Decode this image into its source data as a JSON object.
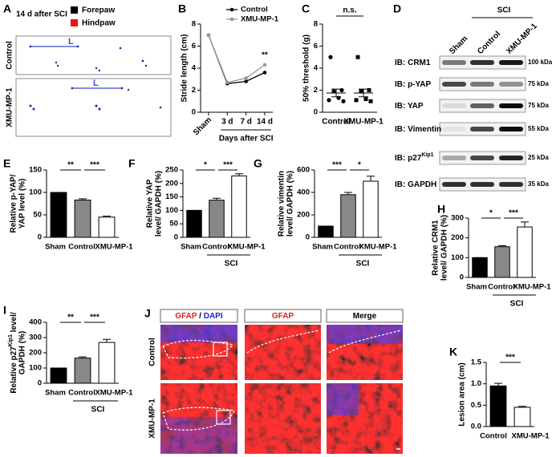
{
  "panel_a": {
    "label": "A",
    "title": "14 d after SCI",
    "legend": [
      {
        "name": "Forepaw",
        "color": "#000000"
      },
      {
        "name": "Hindpaw",
        "color": "#ee1111"
      }
    ],
    "rows": [
      "Control",
      "XMU-MP-1"
    ],
    "markers": [
      "L",
      "L"
    ]
  },
  "panel_d": {
    "label": "D",
    "lanes": [
      "Sham",
      "Control",
      "XMU-MP-1"
    ],
    "group_label": "SCI",
    "rows": [
      {
        "label": "IB: CRM1",
        "size": "100 kDa"
      },
      {
        "label": "IB: p-YAP",
        "size": "75 kDa"
      },
      {
        "label": "IB: YAP",
        "size": "75 kDa"
      },
      {
        "label": "IB: Vimentin",
        "size": "55 kDa"
      },
      {
        "label": "IB: p27",
        "sup": "Kip1",
        "size": "25 kDa"
      },
      {
        "label": "IB: GAPDH",
        "size": "35 kDa"
      }
    ]
  },
  "panel_j": {
    "label": "J",
    "headers": [
      [
        {
          "text": "GFAP",
          "color": "#e02020"
        },
        {
          "text": "/",
          "color": "#000000"
        },
        {
          "text": "DAPI",
          "color": "#2020d0"
        }
      ],
      [
        {
          "text": "GFAP",
          "color": "#e02020"
        }
      ],
      [
        {
          "text": "Merge",
          "color": "#000000"
        }
      ]
    ],
    "rows": [
      "Control",
      "XMU-MP-1"
    ]
  },
  "chart_data": [
    {
      "type": "line",
      "panel": "B",
      "ylabel": "Stride length (cm)",
      "xlabel": "Days after SCI",
      "categories": [
        "Sham",
        "3 d",
        "7 d",
        "14 d"
      ],
      "series": [
        {
          "name": "Control",
          "color": "#000000",
          "values": [
            7.0,
            2.6,
            2.8,
            3.6
          ]
        },
        {
          "name": "XMU-MP-1",
          "color": "#999999",
          "values": [
            7.0,
            2.7,
            3.1,
            4.3
          ]
        }
      ],
      "ylim": [
        0,
        8
      ],
      "yticks": [
        0,
        2,
        4,
        6,
        8
      ],
      "annotations": [
        "**"
      ]
    },
    {
      "type": "strip",
      "panel": "C",
      "ylabel": "50% threshold (g)",
      "categories": [
        "Control",
        "XMU-MP-1"
      ],
      "points": [
        [
          5.0,
          2.0,
          1.9,
          1.3,
          1.1,
          1.0
        ],
        [
          5.0,
          2.0,
          1.9,
          1.2,
          1.1,
          1.0
        ]
      ],
      "means": [
        1.75,
        1.75
      ],
      "errors": [
        0.35,
        0.35
      ],
      "markers": [
        "circle",
        "square"
      ],
      "ylim": [
        0,
        8
      ],
      "yticks": [
        0,
        2,
        4,
        6,
        8
      ],
      "annotations": [
        "n.s."
      ]
    },
    {
      "type": "bar",
      "panel": "E",
      "ylabel": [
        "Relative p-YAP/",
        "YAP level (%)"
      ],
      "categories": [
        "Sham",
        "Control",
        "XMU-MP-1"
      ],
      "values": [
        100,
        83,
        45
      ],
      "errors": [
        0,
        3,
        2
      ],
      "colors": [
        "#000000",
        "#888888",
        "#ffffff"
      ],
      "ylim": [
        0,
        150
      ],
      "yticks": [
        0,
        50,
        100,
        150
      ],
      "annotations": [
        "**",
        "***"
      ]
    },
    {
      "type": "bar",
      "panel": "F",
      "ylabel": [
        "Relative YAP",
        "level/ GAPDH (%)"
      ],
      "categories": [
        "Sham",
        "Control",
        "XMU-MP-1"
      ],
      "values": [
        100,
        138,
        228
      ],
      "errors": [
        0,
        7,
        8
      ],
      "colors": [
        "#000000",
        "#888888",
        "#ffffff"
      ],
      "ylim": [
        0,
        250
      ],
      "yticks": [
        0,
        50,
        100,
        150,
        200,
        250
      ],
      "annotations": [
        "*",
        "***"
      ],
      "group_label": "SCI"
    },
    {
      "type": "bar",
      "panel": "G",
      "ylabel": [
        "Relative vimentin",
        "level/ GAPDH (%)"
      ],
      "categories": [
        "Sham",
        "Control",
        "XMU-MP-1"
      ],
      "values": [
        100,
        380,
        500
      ],
      "errors": [
        0,
        20,
        45
      ],
      "colors": [
        "#000000",
        "#888888",
        "#ffffff"
      ],
      "ylim": [
        0,
        600
      ],
      "yticks": [
        0,
        200,
        400,
        600
      ],
      "annotations": [
        "***",
        "*"
      ],
      "group_label": "SCI"
    },
    {
      "type": "bar",
      "panel": "H",
      "ylabel": [
        "Relative CRM1",
        "level/ GAPDH (%)"
      ],
      "categories": [
        "Sham",
        "Control",
        "XMU-MP-1"
      ],
      "values": [
        100,
        155,
        255
      ],
      "errors": [
        0,
        5,
        25
      ],
      "colors": [
        "#000000",
        "#888888",
        "#ffffff"
      ],
      "ylim": [
        0,
        300
      ],
      "yticks": [
        0,
        100,
        200,
        300
      ],
      "annotations": [
        "*",
        "***"
      ],
      "group_label": "SCI"
    },
    {
      "type": "bar",
      "panel": "I",
      "ylabel": [
        {
          "text": "Relative p27",
          "sup": "Kip1",
          "rest": " level/"
        },
        "GAPDH (%)"
      ],
      "categories": [
        "Sham",
        "Control",
        "XMU-MP-1"
      ],
      "values": [
        100,
        165,
        268
      ],
      "errors": [
        0,
        8,
        20
      ],
      "colors": [
        "#000000",
        "#888888",
        "#ffffff"
      ],
      "ylim": [
        0,
        400
      ],
      "yticks": [
        0,
        100,
        200,
        300,
        400
      ],
      "annotations": [
        "**",
        "***"
      ],
      "group_label": "SCI"
    },
    {
      "type": "bar",
      "panel": "K",
      "ylabel": [
        "Lesion area (cm)"
      ],
      "categories": [
        "Control",
        "XMU-MP-1"
      ],
      "values": [
        0.95,
        0.45
      ],
      "errors": [
        0.06,
        0.02
      ],
      "colors": [
        "#000000",
        "#ffffff"
      ],
      "ylim": [
        0,
        1.5
      ],
      "yticks": [
        {
          "value": 0,
          "label": "0.0"
        },
        0.5,
        {
          "value": 1,
          "label": "1.0"
        },
        1.5
      ],
      "annotations": [
        "***"
      ]
    }
  ]
}
